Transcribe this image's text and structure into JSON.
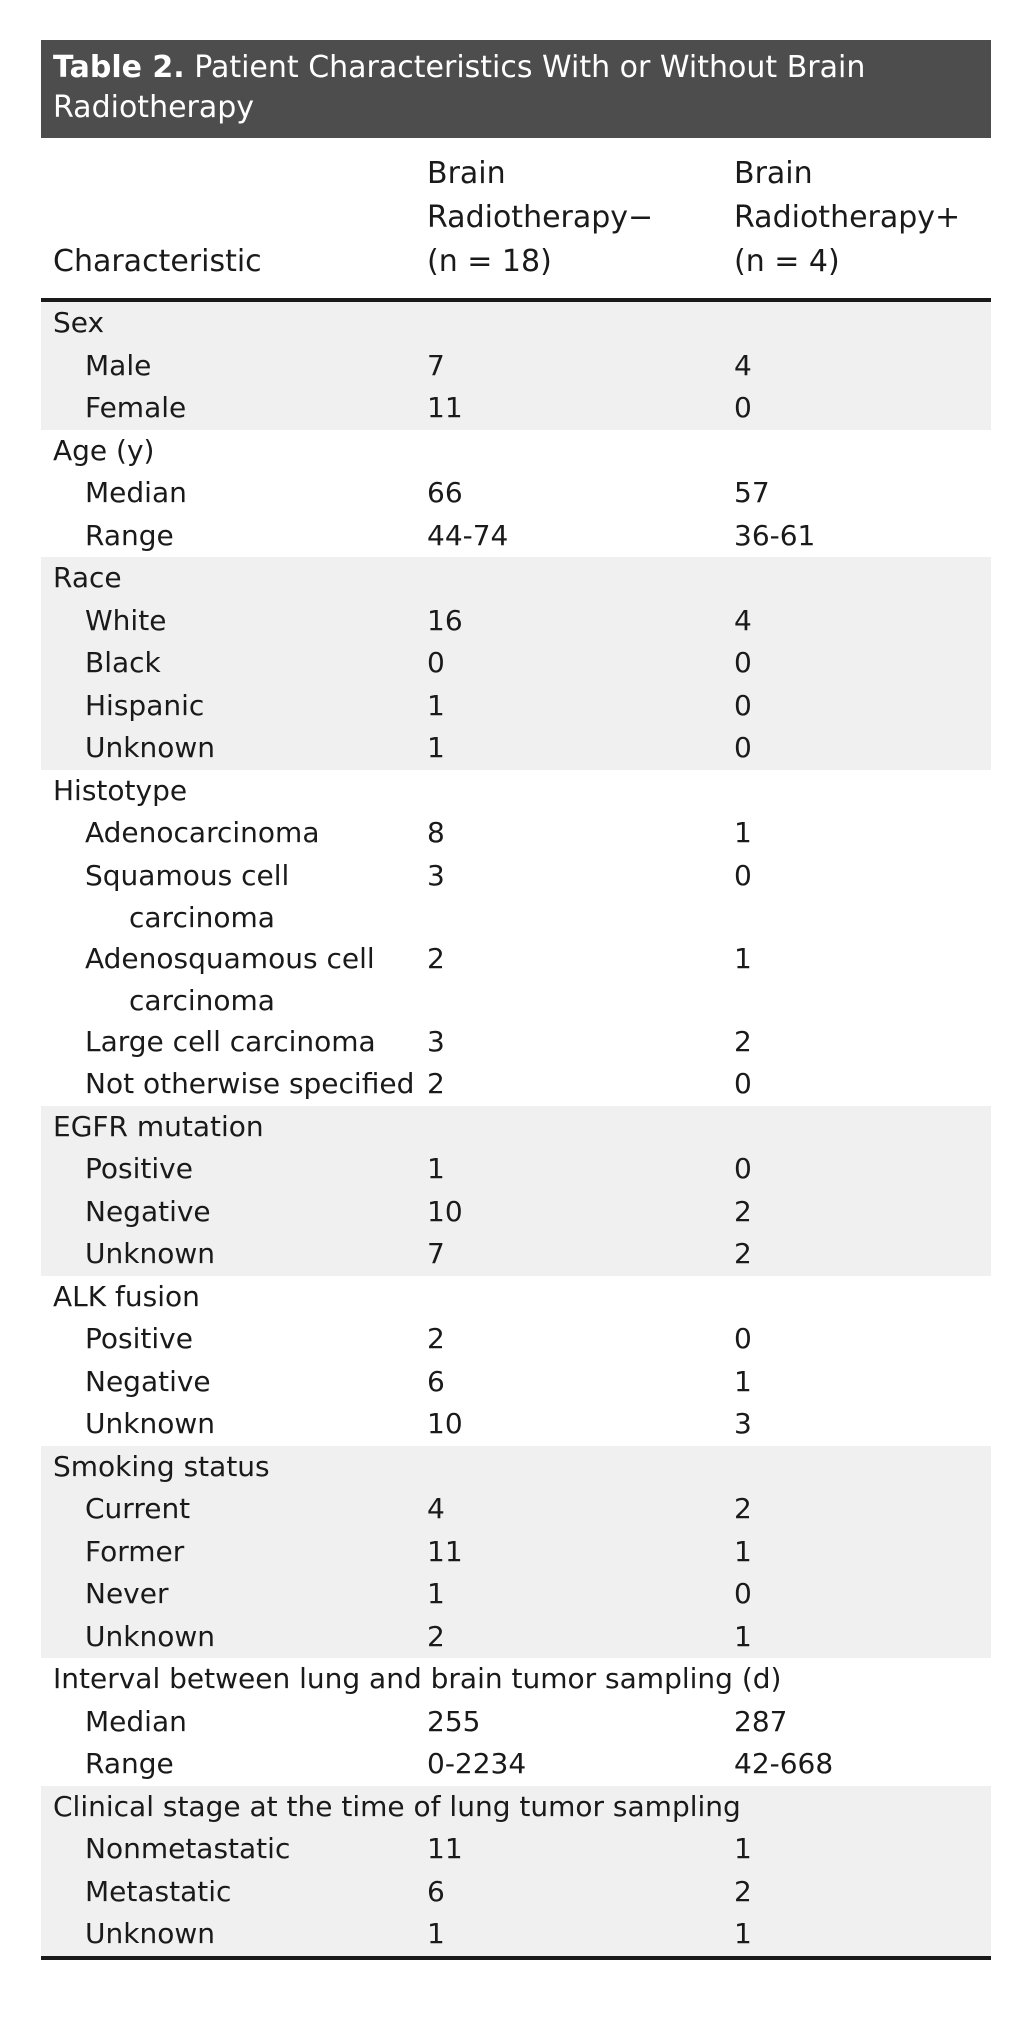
{
  "table": {
    "title_label": "Table 2.",
    "title_text": " Patient Characteristics With or Without Brain",
    "title_text_line2": "Radiotherapy",
    "columns": [
      {
        "lines": [
          "Characteristic"
        ]
      },
      {
        "lines": [
          "Brain",
          "Radiotherapy−",
          "(n = 18)"
        ]
      },
      {
        "lines": [
          "Brain",
          "Radiotherapy+",
          "(n = 4)"
        ]
      }
    ],
    "groups": [
      {
        "label": "Sex",
        "shaded": true,
        "rows": [
          {
            "label": "Male",
            "v1": "7",
            "v2": "4"
          },
          {
            "label": "Female",
            "v1": "11",
            "v2": "0"
          }
        ]
      },
      {
        "label": "Age (y)",
        "shaded": false,
        "rows": [
          {
            "label": "Median",
            "v1": "66",
            "v2": "57"
          },
          {
            "label": "Range",
            "v1": "44-74",
            "v2": "36-61"
          }
        ]
      },
      {
        "label": "Race",
        "shaded": true,
        "rows": [
          {
            "label": "White",
            "v1": "16",
            "v2": "4"
          },
          {
            "label": "Black",
            "v1": "0",
            "v2": "0"
          },
          {
            "label": "Hispanic",
            "v1": "1",
            "v2": "0"
          },
          {
            "label": "Unknown",
            "v1": "1",
            "v2": "0"
          }
        ]
      },
      {
        "label": "Histotype",
        "shaded": false,
        "rows": [
          {
            "label": "Adenocarcinoma",
            "v1": "8",
            "v2": "1"
          },
          {
            "label": "Squamous cell",
            "label2": "carcinoma",
            "v1": "3",
            "v2": "0"
          },
          {
            "label": "Adenosquamous cell",
            "label2": "carcinoma",
            "v1": "2",
            "v2": "1"
          },
          {
            "label": "Large cell carcinoma",
            "v1": "3",
            "v2": "2"
          },
          {
            "label": "Not otherwise specified",
            "v1": "2",
            "v2": "0"
          }
        ]
      },
      {
        "label": "EGFR mutation",
        "shaded": true,
        "rows": [
          {
            "label": "Positive",
            "v1": "1",
            "v2": "0"
          },
          {
            "label": "Negative",
            "v1": "10",
            "v2": "2"
          },
          {
            "label": "Unknown",
            "v1": "7",
            "v2": "2"
          }
        ]
      },
      {
        "label": "ALK fusion",
        "shaded": false,
        "rows": [
          {
            "label": "Positive",
            "v1": "2",
            "v2": "0"
          },
          {
            "label": "Negative",
            "v1": "6",
            "v2": "1"
          },
          {
            "label": "Unknown",
            "v1": "10",
            "v2": "3"
          }
        ]
      },
      {
        "label": "Smoking status",
        "shaded": true,
        "rows": [
          {
            "label": "Current",
            "v1": "4",
            "v2": "2"
          },
          {
            "label": "Former",
            "v1": "11",
            "v2": "1"
          },
          {
            "label": "Never",
            "v1": "1",
            "v2": "0"
          },
          {
            "label": "Unknown",
            "v1": "2",
            "v2": "1"
          }
        ]
      },
      {
        "label": "Interval between lung and brain tumor sampling (d)",
        "shaded": false,
        "rows": [
          {
            "label": "Median",
            "v1": "255",
            "v2": "287"
          },
          {
            "label": "Range",
            "v1": "0-2234",
            "v2": "42-668"
          }
        ]
      },
      {
        "label": "Clinical stage at the time of lung tumor sampling",
        "shaded": true,
        "rows": [
          {
            "label": "Nonmetastatic",
            "v1": "11",
            "v2": "1"
          },
          {
            "label": "Metastatic",
            "v1": "6",
            "v2": "2"
          },
          {
            "label": "Unknown",
            "v1": "1",
            "v2": "1"
          }
        ]
      }
    ]
  }
}
